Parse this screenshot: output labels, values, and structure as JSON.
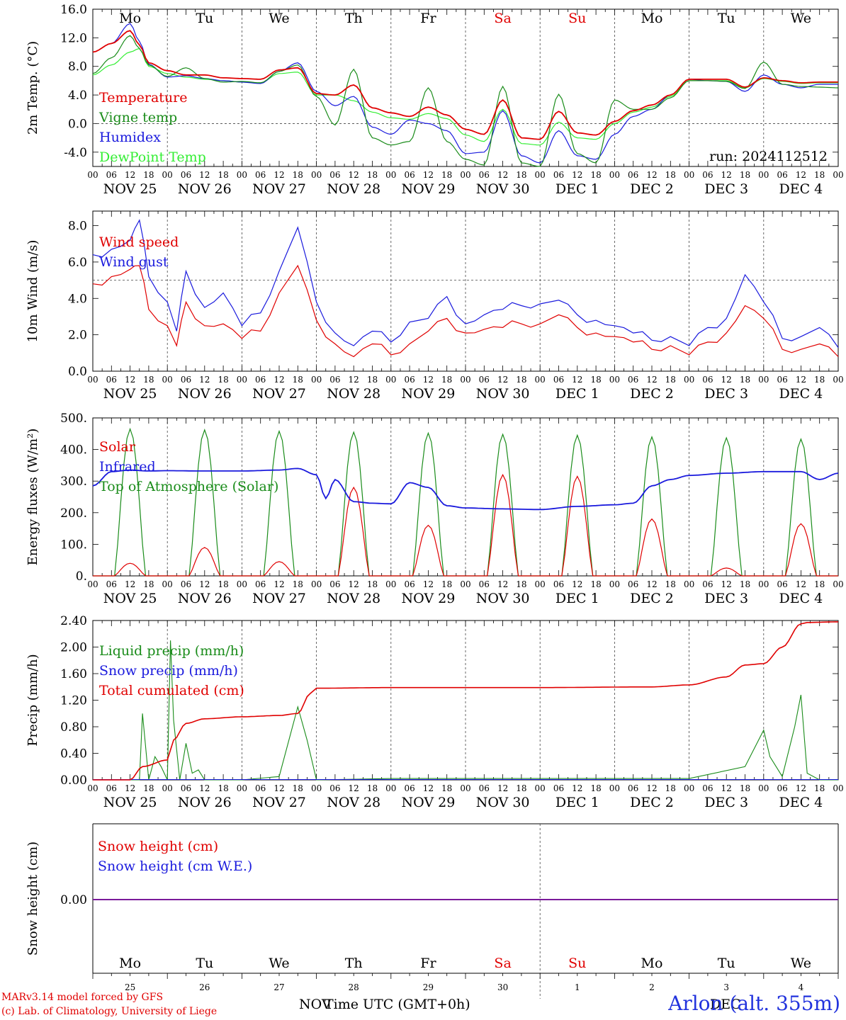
{
  "footer": {
    "credit_line1": "MARv3.14 model forced by GFS",
    "credit_line2": "(c) Lab. of Climatology, University of Liege",
    "station": "Arlon (alt. 355m)"
  },
  "colors": {
    "red": "#e00000",
    "green": "#1a8c1a",
    "blue": "#1a1add",
    "lightgreen": "#33ee33",
    "purple": "#7a1a9a"
  },
  "axis": {
    "hour_ticks": [
      "00",
      "06",
      "12",
      "18"
    ],
    "date_labels": [
      "NOV 25",
      "NOV 26",
      "NOV 27",
      "NOV 28",
      "NOV 29",
      "NOV 30",
      "DEC  1",
      "DEC  2",
      "DEC  3",
      "DEC  4"
    ],
    "weekday_labels": [
      "Mo",
      "Tu",
      "We",
      "Th",
      "Fr",
      "Sa",
      "Su",
      "Mo",
      "Tu",
      "We"
    ],
    "weekday_colors": [
      "black",
      "black",
      "black",
      "black",
      "black",
      "red",
      "red",
      "black",
      "black",
      "black"
    ],
    "bottom_weekday_labels": [
      "Mo",
      "Tu",
      "We",
      "Th",
      "Fr",
      "Sa",
      "Su",
      "Mo",
      "Tu",
      "We"
    ],
    "bottom_day_numbers": [
      "25",
      "26",
      "27",
      "28",
      "29",
      "30",
      "1",
      "2",
      "3",
      "4"
    ],
    "bottom_month_left": "NOV",
    "bottom_month_right": "DEC",
    "xlabel": "Time UTC (GMT+0h)"
  },
  "chart_data": [
    {
      "type": "line",
      "ylabel": "2m Temp. (°C)",
      "ylim": [
        -6,
        16
      ],
      "yticks": [
        "16.0",
        "12.0",
        "8.0",
        "4.0",
        "0.0",
        "-4.0"
      ],
      "yticks_values": [
        16,
        12,
        8,
        4,
        0,
        -4
      ],
      "ref_line": 0,
      "annotation": "run: 2024112512",
      "x_hours": [
        0,
        6,
        12,
        15,
        18,
        24,
        30,
        36,
        42,
        48,
        54,
        60,
        66,
        72,
        78,
        84,
        90,
        96,
        102,
        108,
        114,
        120,
        126,
        132,
        138,
        144,
        150,
        156,
        162,
        168,
        174,
        180,
        186,
        192,
        198,
        204,
        210,
        216,
        222,
        228,
        234,
        240
      ],
      "series": [
        {
          "name": "Temperature",
          "color": "red",
          "values": [
            10,
            11.2,
            13,
            11,
            8.5,
            7.4,
            6.8,
            6.8,
            6.4,
            6.3,
            6.2,
            7.5,
            7.8,
            4.2,
            4,
            5.4,
            2.2,
            1.5,
            1.0,
            2.3,
            1.2,
            -0.8,
            -1.5,
            3.3,
            -2,
            -2.2,
            1.7,
            -1.3,
            -1.6,
            0.3,
            1.8,
            2.6,
            4,
            6.2,
            6.2,
            6.2,
            5.1,
            6.4,
            6.0,
            5.7,
            5.8,
            5.8
          ]
        },
        {
          "name": "Vigne temp",
          "color": "green",
          "values": [
            7,
            9.2,
            12.3,
            10.5,
            8.2,
            6.6,
            7.8,
            6.3,
            5.8,
            5.9,
            5.7,
            7.3,
            8.2,
            3.8,
            -0.2,
            7.6,
            -2,
            -3,
            -2.5,
            5.0,
            -2.5,
            -5.0,
            -5.8,
            5.2,
            -5.5,
            -6.0,
            4.1,
            -4.2,
            -5.5,
            3.3,
            2.0,
            2.0,
            3.6,
            6.0,
            6.0,
            5.9,
            4.9,
            8.6,
            5.5,
            5.2,
            5.1,
            5.0
          ]
        },
        {
          "name": "Humidex",
          "color": "blue",
          "values": [
            10,
            11.2,
            14,
            11.5,
            8.3,
            6.5,
            6.7,
            6.3,
            6,
            5.8,
            5.6,
            7.3,
            8.5,
            4.5,
            2.5,
            3.8,
            -0.5,
            -1.5,
            0.5,
            0.0,
            -1.0,
            -4.2,
            -4.0,
            1.8,
            -4.5,
            -5.5,
            -1.0,
            -4.5,
            -5.0,
            -1.5,
            1.0,
            2.0,
            4,
            6.2,
            6.0,
            5.9,
            4.5,
            6.8,
            5.5,
            5.0,
            5.5,
            5.5
          ]
        },
        {
          "name": "DewPoint Temp",
          "color": "lightgreen",
          "values": [
            6.8,
            8.2,
            10.0,
            10.5,
            8.0,
            7.0,
            6.5,
            6.2,
            6.0,
            5.8,
            5.7,
            7.0,
            7.2,
            4.0,
            4.0,
            3.2,
            1.6,
            0.8,
            0.6,
            1.4,
            0.7,
            -1.6,
            -2.5,
            2.0,
            -2.8,
            -3.0,
            0.2,
            -2.0,
            -2.2,
            0.0,
            1.6,
            2.3,
            3.8,
            6.0,
            6.0,
            6.0,
            5.0,
            6.3,
            5.9,
            5.6,
            5.7,
            5.7
          ]
        }
      ]
    },
    {
      "type": "line",
      "ylabel": "10m Wind (m/s)",
      "ylim": [
        0,
        8.8
      ],
      "yticks": [
        "8.0",
        "6.0",
        "4.0",
        "2.0",
        "0.0"
      ],
      "yticks_values": [
        8,
        6,
        4,
        2,
        0
      ],
      "ref_line": 5,
      "x_hours": [
        0,
        6,
        12,
        15,
        18,
        24,
        27,
        30,
        36,
        42,
        48,
        54,
        60,
        66,
        72,
        78,
        84,
        90,
        96,
        102,
        108,
        114,
        120,
        126,
        132,
        138,
        144,
        150,
        156,
        162,
        168,
        174,
        180,
        186,
        192,
        198,
        204,
        210,
        216,
        222,
        228,
        234,
        240
      ],
      "series": [
        {
          "name": "Wind speed",
          "color": "red",
          "values": [
            4.8,
            5.2,
            5.6,
            5.8,
            3.4,
            2.5,
            1.4,
            3.8,
            2.5,
            2.6,
            1.8,
            2.2,
            4.3,
            5.8,
            2.8,
            1.5,
            0.8,
            1.5,
            0.9,
            1.5,
            2.2,
            2.9,
            2.1,
            2.3,
            2.4,
            2.6,
            2.6,
            3.1,
            2.4,
            2.1,
            1.9,
            1.6,
            1.2,
            1.4,
            0.9,
            1.6,
            2.1,
            3.6,
            2.9,
            1.2,
            1.2,
            1.5,
            0.8
          ]
        },
        {
          "name": "Wind gust",
          "color": "blue",
          "values": [
            6.4,
            6.7,
            7.2,
            8.3,
            5.2,
            3.8,
            2.2,
            5.5,
            3.5,
            4.3,
            2.5,
            3.2,
            5.5,
            7.9,
            3.8,
            2.1,
            1.4,
            2.2,
            1.6,
            2.7,
            2.9,
            4.1,
            2.6,
            3.1,
            3.4,
            3.6,
            3.7,
            3.9,
            3.1,
            2.8,
            2.5,
            2.1,
            1.7,
            1.9,
            1.4,
            2.4,
            2.9,
            5.3,
            3.8,
            1.8,
            1.9,
            2.4,
            1.3
          ]
        }
      ]
    },
    {
      "type": "line",
      "ylabel": "Energy fluxes (W/m²)",
      "ylim": [
        0,
        500
      ],
      "yticks": [
        "500.",
        "400.",
        "300.",
        "200.",
        "100.",
        "0."
      ],
      "yticks_values": [
        500,
        400,
        300,
        200,
        100,
        0
      ],
      "series_meta": [
        {
          "name": "Solar",
          "color": "red",
          "peaks": [
            40,
            90,
            45,
            280,
            160,
            320,
            315,
            180,
            25,
            165
          ]
        },
        {
          "name": "Infrared",
          "color": "blue"
        },
        {
          "name": "Top of Atmosphere (Solar)",
          "color": "green",
          "peaks": [
            465,
            462,
            458,
            455,
            452,
            448,
            445,
            440,
            437,
            433
          ]
        }
      ],
      "infrared_x_hours": [
        0,
        6,
        12,
        18,
        24,
        36,
        48,
        60,
        66,
        72,
        75,
        78,
        84,
        90,
        96,
        102,
        108,
        114,
        120,
        132,
        144,
        156,
        168,
        174,
        180,
        186,
        192,
        204,
        216,
        228,
        234,
        240
      ],
      "infrared_values": [
        285,
        330,
        335,
        332,
        333,
        332,
        332,
        335,
        340,
        320,
        245,
        305,
        235,
        230,
        228,
        295,
        280,
        222,
        215,
        212,
        210,
        220,
        225,
        230,
        285,
        305,
        318,
        325,
        330,
        330,
        305,
        325
      ]
    },
    {
      "type": "line",
      "ylabel": "Precip (mm/h)",
      "ylim": [
        0,
        2.4
      ],
      "yticks": [
        "2.40",
        "2.00",
        "1.60",
        "1.20",
        "0.80",
        "0.40",
        "0.00"
      ],
      "yticks_values": [
        2.4,
        2.0,
        1.6,
        1.2,
        0.8,
        0.4,
        0.0
      ],
      "series_meta": [
        {
          "name": "Liquid precip (mm/h)",
          "color": "green"
        },
        {
          "name": "Snow precip (mm/h)",
          "color": "blue"
        },
        {
          "name": "Total cumulated (cm)",
          "color": "red"
        }
      ],
      "liquid_x_hours": [
        0,
        12,
        15,
        16,
        18,
        20,
        22,
        24,
        25,
        26,
        28,
        30,
        32,
        34,
        36,
        40,
        48,
        60,
        66,
        69,
        72,
        96,
        144,
        192,
        210,
        216,
        218,
        222,
        226,
        228,
        230,
        234,
        240
      ],
      "liquid_values": [
        0,
        0,
        0,
        1.0,
        0,
        0.35,
        0.2,
        0,
        2.1,
        0.9,
        0,
        0.55,
        0.1,
        0.15,
        0,
        0,
        0,
        0.05,
        1.1,
        0.6,
        0,
        0.02,
        0.02,
        0.02,
        0.2,
        0.75,
        0.35,
        0.05,
        0.8,
        1.28,
        0.1,
        0,
        0
      ],
      "cumulated_x_hours": [
        0,
        12,
        16,
        24,
        26,
        30,
        36,
        48,
        60,
        66,
        70,
        72,
        96,
        144,
        180,
        192,
        204,
        210,
        216,
        222,
        228,
        230,
        240
      ],
      "cumulated_values": [
        0,
        0,
        0.2,
        0.3,
        0.6,
        0.85,
        0.92,
        0.95,
        0.97,
        1.0,
        1.3,
        1.38,
        1.39,
        1.39,
        1.4,
        1.43,
        1.55,
        1.73,
        1.75,
        2.0,
        2.35,
        2.37,
        2.38
      ]
    },
    {
      "type": "line",
      "ylabel": "Snow height (cm)",
      "ytick": "0.00",
      "series": [
        {
          "name": "Snow height (cm)",
          "color": "red"
        },
        {
          "name": "Snow height (cm W.E.)",
          "color": "blue"
        }
      ],
      "value": 0.0
    }
  ]
}
